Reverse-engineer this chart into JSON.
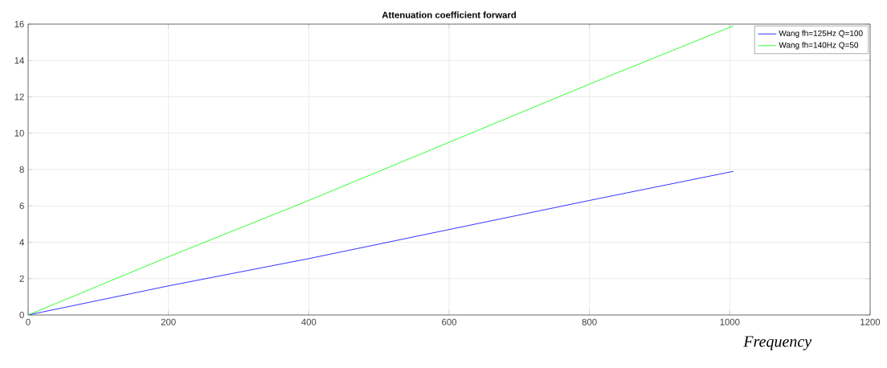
{
  "chart_data": {
    "type": "line",
    "title": "Attenuation coefficient forward",
    "xlabel": "Frequency",
    "xlim": [
      0,
      1200
    ],
    "xticks": [
      0,
      200,
      400,
      600,
      800,
      1000,
      1200
    ],
    "ylim": [
      0,
      16
    ],
    "yticks": [
      0,
      2,
      4,
      6,
      8,
      10,
      12,
      14,
      16
    ],
    "grid": true,
    "legend": "top right",
    "marker": "none",
    "line_style": "solid",
    "series": [
      {
        "name": "Wang fh=125Hz Q=100",
        "color": "#0000ff",
        "x": [
          0,
          200,
          400,
          600,
          800,
          1005
        ],
        "values": [
          0,
          1.6,
          3.1,
          4.7,
          6.3,
          7.9
        ]
      },
      {
        "name": "Wang fh=140Hz Q=50",
        "color": "#00ff00",
        "x": [
          0,
          200,
          400,
          600,
          800,
          1005
        ],
        "values": [
          0,
          3.2,
          6.3,
          9.5,
          12.7,
          15.9
        ]
      }
    ]
  }
}
